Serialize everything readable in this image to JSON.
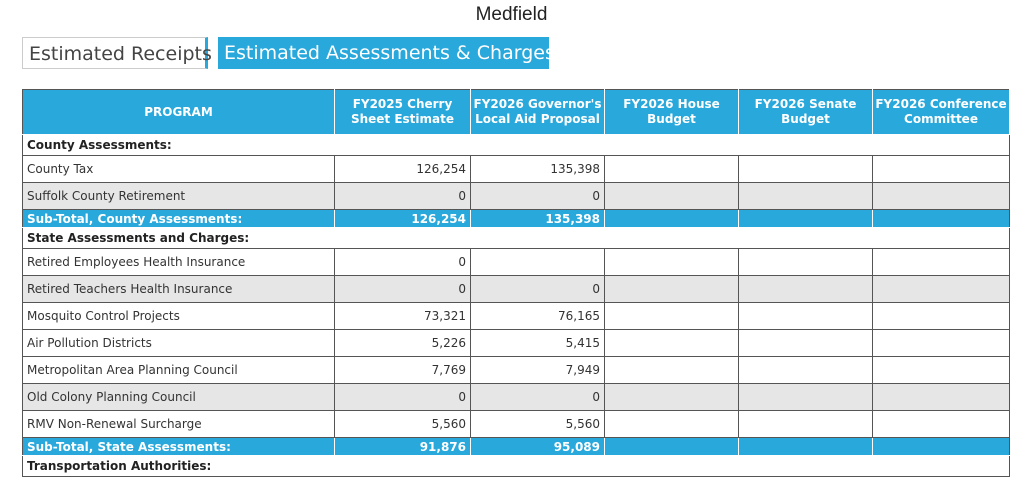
{
  "header": {
    "title": "Medfield"
  },
  "tabs": [
    "Estimated Receipts",
    "Estimated Assessments & Charges"
  ],
  "table": {
    "columns": [
      "PROGRAM",
      "FY2025 Cherry Sheet Estimate",
      "FY2026 Governor's Local Aid Proposal",
      "FY2026 House Budget",
      "FY2026 Senate Budget",
      "FY2026 Conference Committee"
    ],
    "rows": [
      {
        "kind": "section",
        "label": "County Assessments:"
      },
      {
        "kind": "item",
        "label": "County Tax",
        "values": [
          "126,254",
          "135,398"
        ]
      },
      {
        "kind": "item",
        "label": "Suffolk County Retirement",
        "values": [
          "0",
          "0"
        ]
      },
      {
        "kind": "subtotal",
        "label": "Sub-Total, County Assessments:",
        "values": [
          "126,254",
          "135,398"
        ]
      },
      {
        "kind": "section",
        "label": "State Assessments and Charges:"
      },
      {
        "kind": "item",
        "label": "Retired Employees Health Insurance",
        "values": [
          "0"
        ]
      },
      {
        "kind": "item",
        "label": "Retired Teachers Health Insurance",
        "values": [
          "0",
          "0"
        ]
      },
      {
        "kind": "item",
        "label": "Mosquito Control Projects",
        "values": [
          "73,321",
          "76,165"
        ]
      },
      {
        "kind": "item",
        "label": "Air Pollution Districts",
        "values": [
          "5,226",
          "5,415"
        ]
      },
      {
        "kind": "item",
        "label": "Metropolitan Area Planning Council",
        "values": [
          "7,769",
          "7,949"
        ]
      },
      {
        "kind": "item",
        "label": "Old Colony Planning Council",
        "values": [
          "0",
          "0"
        ]
      },
      {
        "kind": "item",
        "label": "RMV Non-Renewal Surcharge",
        "values": [
          "5,560",
          "5,560"
        ]
      },
      {
        "kind": "subtotal",
        "label": "Sub-Total, State Assessments:",
        "values": [
          "91,876",
          "95,089"
        ]
      },
      {
        "kind": "section",
        "label": "Transportation Authorities:"
      }
    ]
  }
}
